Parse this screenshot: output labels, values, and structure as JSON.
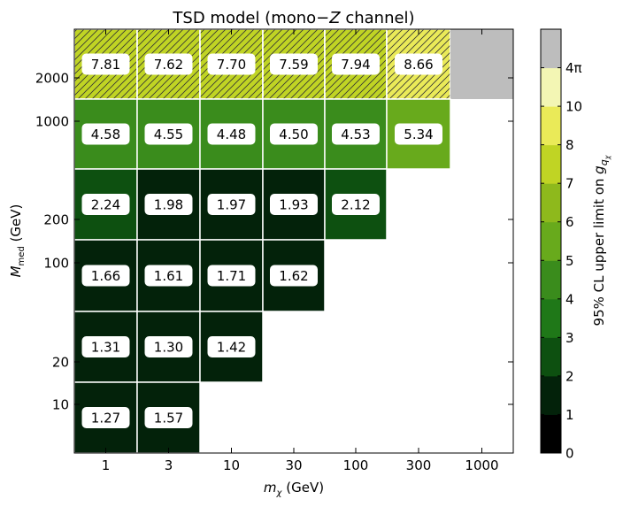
{
  "chart_data": {
    "type": "heatmap",
    "title_prefix": "TSD model (mono−",
    "title_var": "Z",
    "title_suffix": "  channel)",
    "xlabel_var": "m",
    "xlabel_sub": "χ",
    "xlabel_unit": " (GeV)",
    "ylabel_var": "M",
    "ylabel_sub": "med",
    "ylabel_unit": " (GeV)",
    "x_categories": [
      "1",
      "3",
      "10",
      "30",
      "100",
      "300",
      "1000"
    ],
    "y_categories": [
      "10",
      "20",
      "100",
      "200",
      "1000",
      "2000"
    ],
    "cells": [
      {
        "x": "1",
        "y": "2000",
        "value": 7.81,
        "label": "7.81",
        "hatched": true
      },
      {
        "x": "3",
        "y": "2000",
        "value": 7.62,
        "label": "7.62",
        "hatched": true
      },
      {
        "x": "10",
        "y": "2000",
        "value": 7.7,
        "label": "7.70",
        "hatched": true
      },
      {
        "x": "30",
        "y": "2000",
        "value": 7.59,
        "label": "7.59",
        "hatched": true
      },
      {
        "x": "100",
        "y": "2000",
        "value": 7.94,
        "label": "7.94",
        "hatched": true
      },
      {
        "x": "300",
        "y": "2000",
        "value": 8.66,
        "label": "8.66",
        "hatched": true
      },
      {
        "x": "1000",
        "y": "2000",
        "value": null,
        "label": "",
        "hatched": false,
        "gray": true
      },
      {
        "x": "1",
        "y": "1000",
        "value": 4.58,
        "label": "4.58"
      },
      {
        "x": "3",
        "y": "1000",
        "value": 4.55,
        "label": "4.55"
      },
      {
        "x": "10",
        "y": "1000",
        "value": 4.48,
        "label": "4.48"
      },
      {
        "x": "30",
        "y": "1000",
        "value": 4.5,
        "label": "4.50"
      },
      {
        "x": "100",
        "y": "1000",
        "value": 4.53,
        "label": "4.53"
      },
      {
        "x": "300",
        "y": "1000",
        "value": 5.34,
        "label": "5.34"
      },
      {
        "x": "1",
        "y": "200",
        "value": 2.24,
        "label": "2.24"
      },
      {
        "x": "3",
        "y": "200",
        "value": 1.98,
        "label": "1.98"
      },
      {
        "x": "10",
        "y": "200",
        "value": 1.97,
        "label": "1.97"
      },
      {
        "x": "30",
        "y": "200",
        "value": 1.93,
        "label": "1.93"
      },
      {
        "x": "100",
        "y": "200",
        "value": 2.12,
        "label": "2.12"
      },
      {
        "x": "1",
        "y": "100",
        "value": 1.66,
        "label": "1.66"
      },
      {
        "x": "3",
        "y": "100",
        "value": 1.61,
        "label": "1.61"
      },
      {
        "x": "10",
        "y": "100",
        "value": 1.71,
        "label": "1.71"
      },
      {
        "x": "30",
        "y": "100",
        "value": 1.62,
        "label": "1.62"
      },
      {
        "x": "1",
        "y": "20",
        "value": 1.31,
        "label": "1.31"
      },
      {
        "x": "3",
        "y": "20",
        "value": 1.3,
        "label": "1.30"
      },
      {
        "x": "10",
        "y": "20",
        "value": 1.42,
        "label": "1.42"
      },
      {
        "x": "1",
        "y": "10",
        "value": 1.27,
        "label": "1.27"
      },
      {
        "x": "3",
        "y": "10",
        "value": 1.57,
        "label": "1.57"
      }
    ],
    "colorbar": {
      "label_prefix": "95% CL upper limit on ",
      "label_var": "g",
      "label_sub": "q",
      "label_subsub": "χ",
      "bins": [
        {
          "from": "0",
          "to": "1",
          "color": "#000000"
        },
        {
          "from": "1",
          "to": "2",
          "color": "#03220a"
        },
        {
          "from": "2",
          "to": "3",
          "color": "#0d5010"
        },
        {
          "from": "3",
          "to": "4",
          "color": "#1f7818"
        },
        {
          "from": "4",
          "to": "5",
          "color": "#3a8c1c"
        },
        {
          "from": "5",
          "to": "6",
          "color": "#68aa1c"
        },
        {
          "from": "6",
          "to": "7",
          "color": "#8eb91c"
        },
        {
          "from": "7",
          "to": "8",
          "color": "#c0d424"
        },
        {
          "from": "8",
          "to": "10",
          "color": "#eaea58"
        },
        {
          "from": "10",
          "to": "4π",
          "color": "#f3f6b4"
        },
        {
          "from": "4π",
          "to": "",
          "color": "#bdbdbd"
        }
      ],
      "tick_labels": [
        "0",
        "1",
        "2",
        "3",
        "4",
        "5",
        "6",
        "7",
        "8",
        "10",
        "4π"
      ]
    },
    "grid": false
  }
}
